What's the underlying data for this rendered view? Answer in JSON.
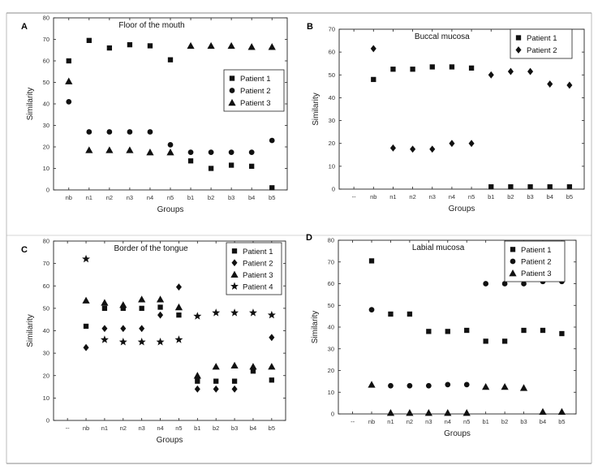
{
  "figure": {
    "xlabel": "Groups",
    "ylabel": "Similarity",
    "marker_color": "#111111"
  },
  "chart_data": [
    {
      "panel_label": "A",
      "title": "Floor of the mouth",
      "type": "scatter",
      "xlabel": "Groups",
      "ylabel": "Similarity",
      "categories": [
        "nb",
        "n1",
        "n2",
        "n3",
        "n4",
        "n5",
        "b1",
        "b2",
        "b3",
        "b4",
        "b5"
      ],
      "ylim": [
        0,
        80
      ],
      "yticks": [
        0,
        10,
        20,
        30,
        40,
        50,
        60,
        70,
        80
      ],
      "legend_position": "center-right",
      "series": [
        {
          "name": "Patient 1",
          "marker": "square",
          "values": [
            60,
            69.5,
            66,
            67.5,
            67,
            60.5,
            13.5,
            10,
            11.5,
            11,
            1
          ]
        },
        {
          "name": "Patient 2",
          "marker": "circle",
          "values": [
            41,
            27,
            27,
            27,
            27,
            21,
            17.5,
            17.5,
            17.5,
            17.5,
            23
          ]
        },
        {
          "name": "Patient 3",
          "marker": "triangle",
          "values": [
            50.5,
            18.5,
            18.5,
            18.5,
            17.5,
            17.5,
            67,
            67,
            67,
            66.5,
            66.5
          ]
        }
      ]
    },
    {
      "panel_label": "B",
      "title": "Buccal mucosa",
      "type": "scatter",
      "xlabel": "Groups",
      "ylabel": "Similarity",
      "categories": [
        "--",
        "nb",
        "n1",
        "n2",
        "n3",
        "n4",
        "n5",
        "b1",
        "b2",
        "b3",
        "b4",
        "b5"
      ],
      "ylim": [
        0,
        70
      ],
      "yticks": [
        0,
        10,
        20,
        30,
        40,
        50,
        60,
        70
      ],
      "legend_position": "top-right",
      "series": [
        {
          "name": "Patient 1",
          "marker": "square",
          "values": [
            null,
            48,
            52.5,
            52.5,
            53.5,
            53.5,
            53,
            1,
            1,
            1,
            1,
            1
          ]
        },
        {
          "name": "Patient 2",
          "marker": "diamond",
          "values": [
            null,
            61.5,
            18,
            17.5,
            17.5,
            20,
            20,
            50,
            51.5,
            51.5,
            46,
            45.5
          ]
        }
      ]
    },
    {
      "panel_label": "C",
      "title": "Border of the tongue",
      "type": "scatter",
      "xlabel": "Groups",
      "ylabel": "Similarity",
      "categories": [
        "--",
        "nb",
        "n1",
        "n2",
        "n3",
        "n4",
        "n5",
        "b1",
        "b2",
        "b3",
        "b4",
        "b5"
      ],
      "ylim": [
        0,
        80
      ],
      "yticks": [
        0,
        10,
        20,
        30,
        40,
        50,
        60,
        70,
        80
      ],
      "legend_position": "top-right",
      "series": [
        {
          "name": "Patient 1",
          "marker": "square",
          "values": [
            null,
            42,
            50,
            50,
            50,
            50.5,
            47,
            17.5,
            17.5,
            17.5,
            22,
            18
          ]
        },
        {
          "name": "Patient 2",
          "marker": "diamond",
          "values": [
            null,
            32.5,
            41,
            41,
            41,
            47,
            59.5,
            14,
            14,
            14,
            23,
            37
          ]
        },
        {
          "name": "Patient 3",
          "marker": "triangle",
          "values": [
            null,
            53.5,
            52.5,
            51.5,
            54,
            54,
            50.5,
            20,
            24,
            24.5,
            24,
            24
          ]
        },
        {
          "name": "Patient 4",
          "marker": "star",
          "values": [
            null,
            72,
            36,
            35,
            35,
            35,
            36,
            46.5,
            48,
            48,
            48,
            47
          ]
        }
      ]
    },
    {
      "panel_label": "D",
      "title": "Labial mucosa",
      "type": "scatter",
      "xlabel": "Groups",
      "ylabel": "Similarity",
      "categories": [
        "--",
        "nb",
        "n1",
        "n2",
        "n3",
        "n4",
        "n5",
        "b1",
        "b2",
        "b3",
        "b4",
        "b5"
      ],
      "ylim": [
        0,
        80
      ],
      "yticks": [
        0,
        10,
        20,
        30,
        40,
        50,
        60,
        70,
        80
      ],
      "legend_position": "top-right",
      "series": [
        {
          "name": "Patient 1",
          "marker": "square",
          "values": [
            null,
            70.5,
            46,
            46,
            38,
            38,
            38.5,
            33.5,
            33.5,
            38.5,
            38.5,
            37
          ]
        },
        {
          "name": "Patient 2",
          "marker": "circle",
          "values": [
            null,
            48,
            13,
            13,
            13,
            13.5,
            13.5,
            60,
            60,
            60,
            61,
            61
          ]
        },
        {
          "name": "Patient 3",
          "marker": "triangle",
          "values": [
            null,
            13.5,
            0.5,
            0.5,
            0.5,
            0.5,
            0.5,
            12.5,
            12.5,
            12,
            1,
            1
          ]
        }
      ]
    }
  ]
}
